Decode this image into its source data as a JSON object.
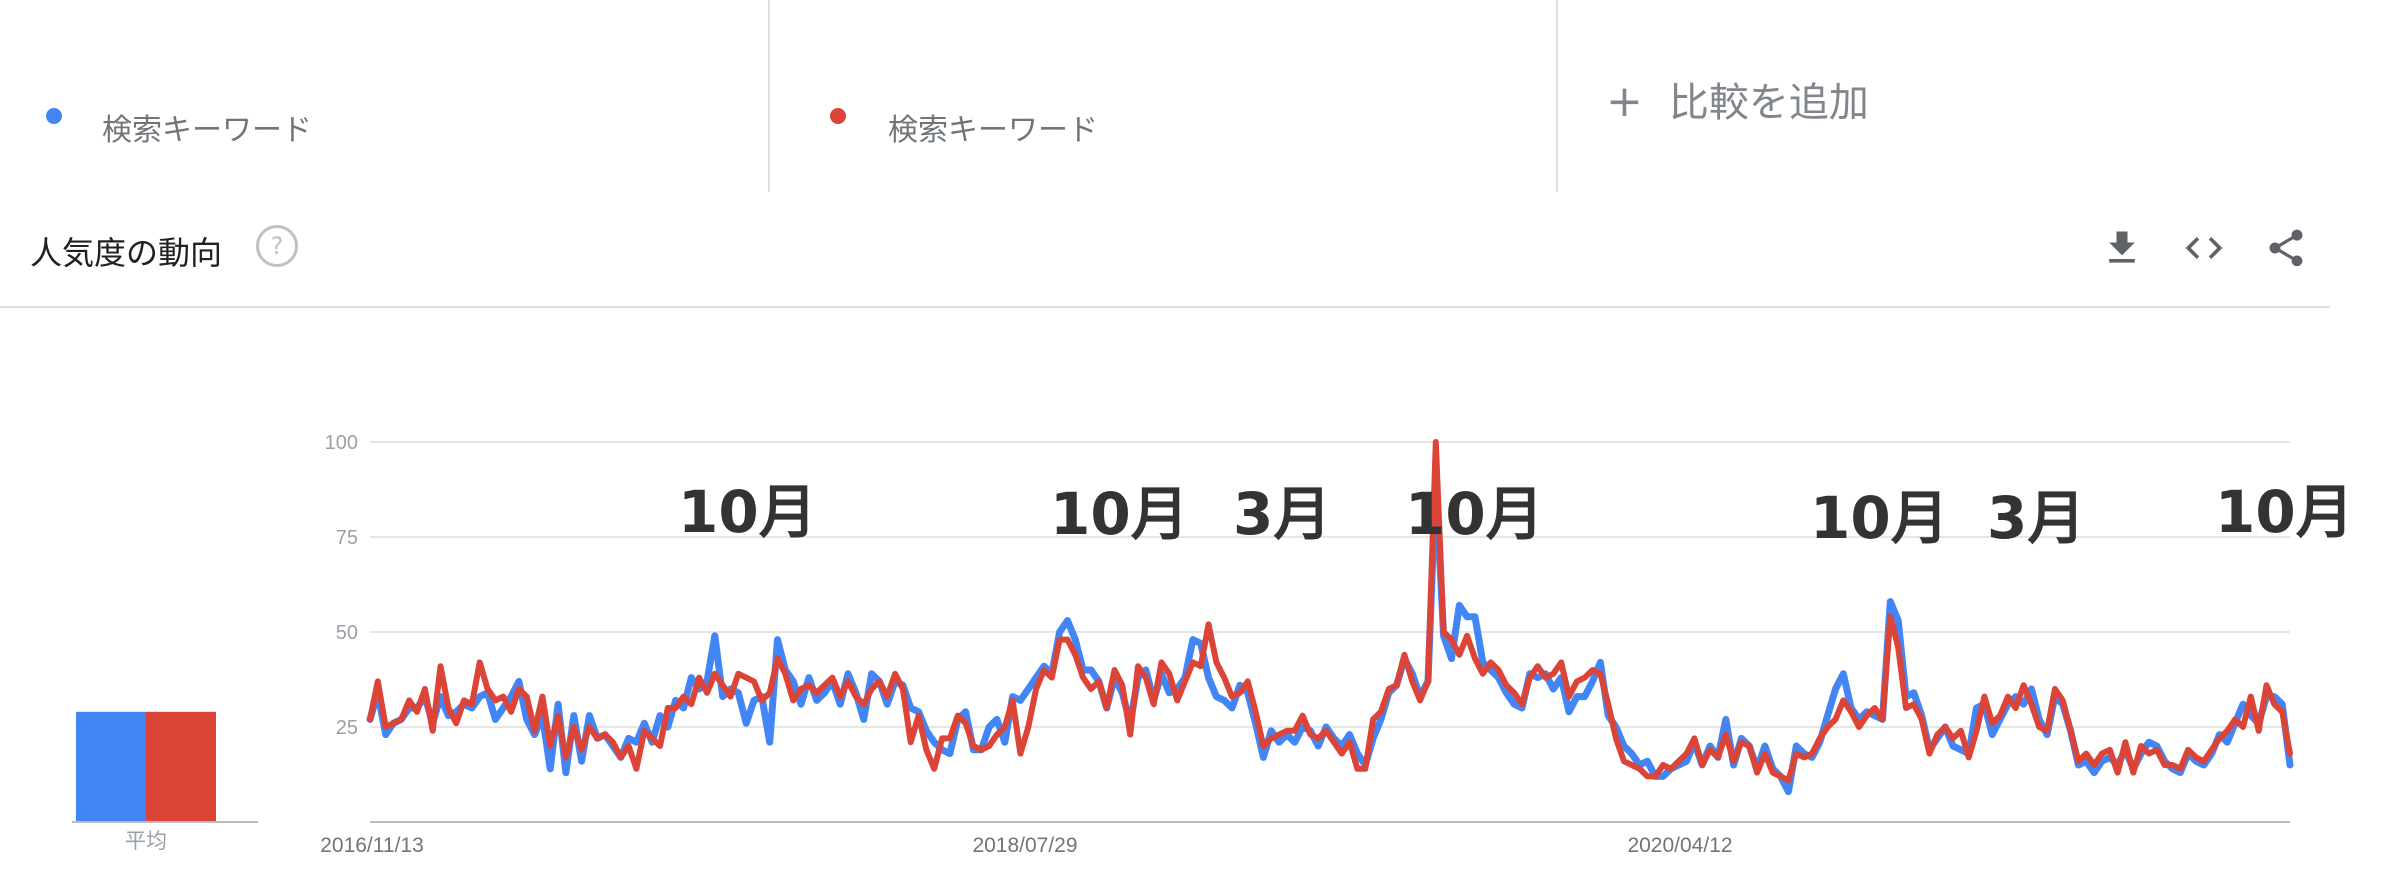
{
  "keywords": [
    {
      "label": "検索キーワード",
      "color": "#4285f4"
    },
    {
      "label": "検索キーワード",
      "color": "#db4437"
    }
  ],
  "add_compare": {
    "icon": "plus-icon",
    "label": "比較を追加"
  },
  "section": {
    "title": "人気度の動向",
    "help_icon": "question-icon"
  },
  "toolbar": {
    "icons": [
      "download-icon",
      "embed-code-icon",
      "share-icon"
    ]
  },
  "avg_label": "平均",
  "chart_data": {
    "type": "line",
    "yticks": [
      "100",
      "75",
      "50",
      "25"
    ],
    "ylim": [
      0,
      100
    ],
    "grid": true,
    "x_labels": [
      "2016/11/13",
      "2018/07/29",
      "2020/04/12"
    ],
    "annotations": [
      "10月",
      "10月",
      "3月",
      "10月",
      "10月",
      "3月",
      "10月"
    ],
    "average": [
      {
        "series": 1,
        "value": 29,
        "color": "#4285f4"
      },
      {
        "series": 2,
        "value": 29,
        "color": "#db4437"
      }
    ],
    "series": [
      {
        "color": "#4285f4",
        "values": [
          27,
          34,
          23,
          26,
          27,
          30,
          30,
          33,
          26,
          33,
          28,
          29,
          31,
          30,
          33,
          34,
          27,
          30,
          33,
          37,
          27,
          23,
          28,
          14,
          31,
          13,
          28,
          16,
          28,
          22,
          23,
          20,
          17,
          22,
          21,
          26,
          21,
          28,
          25,
          32,
          30,
          38,
          35,
          37,
          49,
          33,
          35,
          34,
          26,
          32,
          33,
          21,
          48,
          40,
          37,
          31,
          38,
          32,
          34,
          37,
          31,
          39,
          34,
          27,
          39,
          37,
          31,
          37,
          36,
          30,
          29,
          24,
          21,
          19,
          18,
          27,
          29,
          19,
          19,
          25,
          27,
          21,
          33,
          32,
          35,
          38,
          41,
          39,
          50,
          53,
          48,
          40,
          40,
          37,
          30,
          38,
          34,
          26,
          38,
          40,
          32,
          39,
          34,
          35,
          38,
          48,
          47,
          38,
          33,
          32,
          30,
          36,
          34,
          26,
          17,
          24,
          21,
          23,
          21,
          25,
          24,
          20,
          25,
          22,
          20,
          23,
          18,
          15,
          22,
          27,
          34,
          36,
          43,
          39,
          33,
          37,
          90,
          49,
          43,
          57,
          54,
          54,
          42,
          40,
          38,
          34,
          31,
          30,
          39,
          38,
          39,
          35,
          38,
          29,
          33,
          33,
          37,
          42,
          28,
          25,
          20,
          18,
          15,
          16,
          12,
          12,
          14,
          15,
          16,
          21,
          15,
          20,
          17,
          27,
          15,
          22,
          20,
          14,
          20,
          14,
          12,
          8,
          20,
          18,
          17,
          21,
          28,
          35,
          39,
          30,
          27,
          29,
          28,
          27,
          58,
          53,
          33,
          34,
          28,
          19,
          22,
          25,
          20,
          19,
          18,
          30,
          31,
          23,
          27,
          31,
          33,
          31,
          35,
          27,
          23,
          33,
          31,
          24,
          15,
          16,
          13,
          16,
          17,
          15,
          19,
          14,
          18,
          21,
          20,
          16,
          14,
          13,
          18,
          16,
          15,
          18,
          23,
          21,
          26,
          31,
          28,
          26,
          33,
          33,
          31,
          15
        ]
      },
      {
        "color": "#db4437",
        "values": [
          27,
          37,
          25,
          26,
          27,
          32,
          29,
          35,
          24,
          41,
          30,
          26,
          32,
          31,
          42,
          35,
          32,
          33,
          29,
          35,
          33,
          24,
          33,
          20,
          28,
          17,
          25,
          19,
          25,
          22,
          23,
          21,
          17,
          20,
          14,
          24,
          22,
          20,
          30,
          30,
          33,
          31,
          38,
          34,
          39,
          36,
          33,
          39,
          38,
          37,
          32,
          34,
          43,
          39,
          32,
          35,
          36,
          34,
          36,
          38,
          33,
          37,
          33,
          31,
          35,
          37,
          33,
          39,
          35,
          21,
          28,
          19,
          14,
          22,
          22,
          28,
          26,
          20,
          19,
          20,
          23,
          25,
          32,
          18,
          25,
          35,
          40,
          38,
          48,
          48,
          44,
          38,
          35,
          37,
          30,
          40,
          36,
          23,
          41,
          38,
          31,
          42,
          39,
          32,
          37,
          42,
          41,
          52,
          42,
          38,
          33,
          34,
          37,
          29,
          20,
          22,
          23,
          24,
          24,
          28,
          23,
          22,
          24,
          21,
          18,
          21,
          14,
          14,
          27,
          29,
          35,
          36,
          44,
          37,
          32,
          37,
          100,
          50,
          48,
          44,
          49,
          43,
          39,
          42,
          40,
          36,
          34,
          31,
          38,
          41,
          38,
          39,
          42,
          33,
          37,
          38,
          40,
          39,
          31,
          22,
          16,
          15,
          14,
          12,
          12,
          15,
          14,
          16,
          18,
          22,
          15,
          19,
          17,
          23,
          16,
          21,
          20,
          13,
          18,
          13,
          12,
          11,
          18,
          17,
          18,
          22,
          25,
          27,
          32,
          29,
          25,
          28,
          30,
          27,
          54,
          46,
          30,
          31,
          27,
          18,
          23,
          25,
          22,
          24,
          17,
          24,
          33,
          26,
          28,
          33,
          30,
          36,
          31,
          25,
          24,
          35,
          32,
          24,
          16,
          18,
          15,
          18,
          19,
          13,
          21,
          13,
          20,
          18,
          19,
          15,
          15,
          14,
          19,
          17,
          16,
          19,
          22,
          24,
          27,
          25,
          33,
          24,
          36,
          31,
          29,
          18
        ]
      }
    ]
  }
}
